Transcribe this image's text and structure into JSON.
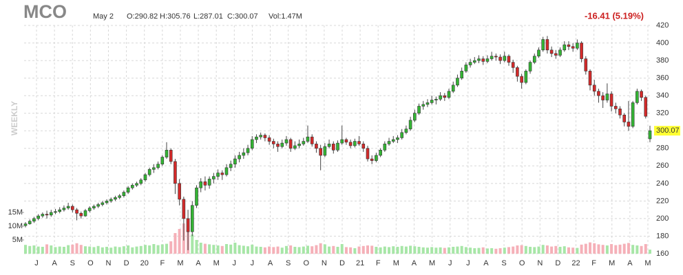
{
  "chart_data": {
    "type": "candlestick",
    "title": "MCO",
    "header": {
      "date": "May 2",
      "open": "O:290.82",
      "high": "H:305.76",
      "low": "L:287.01",
      "close": "C:300.07",
      "volume": "Vol:1.47M",
      "change": "-16.41 (5.19%)"
    },
    "period": "WEEKLY",
    "up_color": "#34b534",
    "down_color": "#d42a2a",
    "up_volume_color": "#a7e6a7",
    "down_volume_color": "#f5b0b8",
    "ylim": [
      160,
      420
    ],
    "yticks": [
      160,
      180,
      200,
      220,
      240,
      260,
      280,
      300,
      320,
      340,
      360,
      380,
      400,
      420
    ],
    "vlim": [
      0,
      16000000
    ],
    "vticks": [
      {
        "value": 5000000,
        "label": "5M"
      },
      {
        "value": 10000000,
        "label": "10M"
      },
      {
        "value": 15000000,
        "label": "15M"
      }
    ],
    "grid": true,
    "xlabels": [
      "J",
      "A",
      "S",
      "O",
      "N",
      "D",
      "20",
      "F",
      "M",
      "A",
      "M",
      "J",
      "J",
      "A",
      "S",
      "O",
      "N",
      "D",
      "21",
      "F",
      "M",
      "A",
      "M",
      "J",
      "J",
      "A",
      "S",
      "O",
      "N",
      "D",
      "22",
      "F",
      "M",
      "A",
      "M"
    ],
    "candles": [
      [
        192,
        196,
        190,
        194,
        3200000.0
      ],
      [
        194,
        199,
        193,
        197,
        2800000.0
      ],
      [
        197,
        202,
        195,
        200,
        3000000.0
      ],
      [
        200,
        205,
        198,
        203,
        2600000.0
      ],
      [
        203,
        207,
        201,
        205,
        2500000.0
      ],
      [
        205,
        209,
        200,
        204,
        3400000.0
      ],
      [
        204,
        210,
        202,
        207,
        3000000.0
      ],
      [
        207,
        211,
        205,
        208,
        2400000.0
      ],
      [
        208,
        213,
        206,
        210,
        2600000.0
      ],
      [
        210,
        215,
        208,
        212,
        2500000.0
      ],
      [
        212,
        218,
        210,
        214,
        3100000.0
      ],
      [
        214,
        216,
        207,
        210,
        3300000.0
      ],
      [
        210,
        212,
        198,
        206,
        3800000.0
      ],
      [
        206,
        208,
        200,
        203,
        3200000.0
      ],
      [
        203,
        211,
        202,
        209,
        2700000.0
      ],
      [
        209,
        214,
        207,
        212,
        2600000.0
      ],
      [
        212,
        216,
        210,
        214,
        2400000.0
      ],
      [
        214,
        218,
        212,
        216,
        2800000.0
      ],
      [
        216,
        220,
        214,
        218,
        2300000.0
      ],
      [
        218,
        222,
        216,
        220,
        2500000.0
      ],
      [
        220,
        224,
        218,
        222,
        2200000.0
      ],
      [
        222,
        226,
        220,
        224,
        2600000.0
      ],
      [
        224,
        228,
        222,
        226,
        2400000.0
      ],
      [
        226,
        232,
        224,
        230,
        2700000.0
      ],
      [
        230,
        237,
        228,
        235,
        3000000.0
      ],
      [
        235,
        240,
        233,
        238,
        2300000.0
      ],
      [
        238,
        242,
        236,
        240,
        2600000.0
      ],
      [
        240,
        246,
        238,
        244,
        2800000.0
      ],
      [
        244,
        252,
        242,
        250,
        3200000.0
      ],
      [
        250,
        258,
        248,
        256,
        3000000.0
      ],
      [
        256,
        262,
        252,
        258,
        3500000.0
      ],
      [
        258,
        265,
        256,
        262,
        3100000.0
      ],
      [
        262,
        272,
        260,
        270,
        3400000.0
      ],
      [
        270,
        287,
        268,
        278,
        3600000.0
      ],
      [
        278,
        280,
        262,
        265,
        4500000.0
      ],
      [
        265,
        268,
        228,
        240,
        7500000.0
      ],
      [
        240,
        245,
        215,
        222,
        9000000.0
      ],
      [
        222,
        225,
        175,
        200,
        11000000.0
      ],
      [
        200,
        210,
        164,
        185,
        10500000.0
      ],
      [
        185,
        220,
        180,
        215,
        7000000.0
      ],
      [
        215,
        238,
        212,
        235,
        5000000.0
      ],
      [
        235,
        246,
        230,
        242,
        4000000.0
      ],
      [
        242,
        248,
        232,
        238,
        3600000.0
      ],
      [
        238,
        248,
        234,
        245,
        3400000.0
      ],
      [
        245,
        252,
        240,
        248,
        3200000.0
      ],
      [
        248,
        256,
        244,
        252,
        3000000.0
      ],
      [
        252,
        255,
        244,
        250,
        2800000.0
      ],
      [
        250,
        262,
        248,
        258,
        3500000.0
      ],
      [
        258,
        266,
        254,
        262,
        3300000.0
      ],
      [
        262,
        272,
        258,
        268,
        4000000.0
      ],
      [
        268,
        276,
        264,
        272,
        3100000.0
      ],
      [
        272,
        280,
        268,
        275,
        2900000.0
      ],
      [
        275,
        284,
        272,
        280,
        2700000.0
      ],
      [
        280,
        294,
        278,
        290,
        3300000.0
      ],
      [
        290,
        296,
        286,
        293,
        2600000.0
      ],
      [
        293,
        298,
        290,
        295,
        2500000.0
      ],
      [
        295,
        297,
        288,
        292,
        2300000.0
      ],
      [
        292,
        295,
        284,
        288,
        2600000.0
      ],
      [
        288,
        291,
        280,
        285,
        2400000.0
      ],
      [
        285,
        288,
        276,
        282,
        2600000.0
      ],
      [
        282,
        290,
        280,
        286,
        2200000.0
      ],
      [
        286,
        294,
        283,
        290,
        2800000.0
      ],
      [
        290,
        292,
        276,
        280,
        3000000.0
      ],
      [
        280,
        288,
        278,
        283,
        2500000.0
      ],
      [
        283,
        290,
        280,
        285,
        2400000.0
      ],
      [
        285,
        292,
        283,
        288,
        2600000.0
      ],
      [
        288,
        306,
        286,
        293,
        2900000.0
      ],
      [
        293,
        296,
        282,
        285,
        2700000.0
      ],
      [
        285,
        288,
        275,
        280,
        3100000.0
      ],
      [
        280,
        284,
        255,
        272,
        3800000.0
      ],
      [
        272,
        286,
        270,
        282,
        3400000.0
      ],
      [
        282,
        290,
        280,
        285,
        2600000.0
      ],
      [
        285,
        288,
        274,
        278,
        2800000.0
      ],
      [
        278,
        289,
        276,
        286,
        2500000.0
      ],
      [
        286,
        306,
        284,
        290,
        3500000.0
      ],
      [
        290,
        292,
        284,
        287,
        2400000.0
      ],
      [
        287,
        290,
        280,
        283,
        2300000.0
      ],
      [
        283,
        291,
        281,
        288,
        2000000.0
      ],
      [
        288,
        294,
        283,
        285,
        2600000.0
      ],
      [
        285,
        288,
        276,
        280,
        2800000.0
      ],
      [
        280,
        283,
        265,
        268,
        3000000.0
      ],
      [
        268,
        272,
        262,
        266,
        2900000.0
      ],
      [
        266,
        275,
        264,
        272,
        2500000.0
      ],
      [
        272,
        280,
        270,
        278,
        2300000.0
      ],
      [
        278,
        288,
        276,
        285,
        2600000.0
      ],
      [
        285,
        292,
        283,
        288,
        2400000.0
      ],
      [
        288,
        294,
        286,
        290,
        2700000.0
      ],
      [
        290,
        295,
        286,
        292,
        2500000.0
      ],
      [
        292,
        302,
        290,
        298,
        2800000.0
      ],
      [
        298,
        306,
        296,
        302,
        2600000.0
      ],
      [
        302,
        316,
        300,
        312,
        2900000.0
      ],
      [
        312,
        324,
        310,
        320,
        2700000.0
      ],
      [
        320,
        331,
        318,
        328,
        2500000.0
      ],
      [
        328,
        334,
        324,
        330,
        2300000.0
      ],
      [
        330,
        336,
        327,
        332,
        2200000.0
      ],
      [
        332,
        340,
        330,
        335,
        2400000.0
      ],
      [
        335,
        339,
        330,
        336,
        2200000.0
      ],
      [
        336,
        344,
        334,
        340,
        2300000.0
      ],
      [
        340,
        343,
        334,
        338,
        2100000.0
      ],
      [
        338,
        348,
        336,
        345,
        2300000.0
      ],
      [
        345,
        356,
        343,
        352,
        2500000.0
      ],
      [
        352,
        364,
        350,
        360,
        2600000.0
      ],
      [
        360,
        372,
        358,
        368,
        2800000.0
      ],
      [
        368,
        378,
        366,
        375,
        2400000.0
      ],
      [
        375,
        382,
        372,
        378,
        2200000.0
      ],
      [
        378,
        384,
        376,
        380,
        2000000.0
      ],
      [
        380,
        386,
        377,
        382,
        2100000.0
      ],
      [
        382,
        385,
        375,
        379,
        2300000.0
      ],
      [
        379,
        386,
        377,
        382,
        1900000.0
      ],
      [
        382,
        390,
        380,
        385,
        2000000.0
      ],
      [
        385,
        388,
        380,
        384,
        1800000.0
      ],
      [
        384,
        387,
        376,
        380,
        2000000.0
      ],
      [
        380,
        390,
        378,
        385,
        2200000.0
      ],
      [
        385,
        387,
        374,
        378,
        2400000.0
      ],
      [
        378,
        381,
        366,
        372,
        2600000.0
      ],
      [
        372,
        374,
        356,
        362,
        3000000.0
      ],
      [
        362,
        365,
        348,
        355,
        3100000.0
      ],
      [
        355,
        370,
        353,
        368,
        2800000.0
      ],
      [
        368,
        380,
        365,
        378,
        2500000.0
      ],
      [
        378,
        388,
        376,
        385,
        2400000.0
      ],
      [
        385,
        395,
        383,
        392,
        2600000.0
      ],
      [
        392,
        407,
        390,
        404,
        3200000.0
      ],
      [
        404,
        408,
        388,
        392,
        3000000.0
      ],
      [
        392,
        396,
        384,
        388,
        2600000.0
      ],
      [
        388,
        392,
        382,
        386,
        2800000.0
      ],
      [
        386,
        395,
        384,
        392,
        2500000.0
      ],
      [
        392,
        402,
        390,
        398,
        2700000.0
      ],
      [
        398,
        402,
        392,
        396,
        2300000.0
      ],
      [
        396,
        400,
        390,
        394,
        2200000.0
      ],
      [
        394,
        404,
        392,
        400,
        2100000.0
      ],
      [
        400,
        402,
        378,
        382,
        3300000.0
      ],
      [
        382,
        385,
        364,
        368,
        3600000.0
      ],
      [
        368,
        370,
        346,
        352,
        4100000.0
      ],
      [
        352,
        358,
        340,
        345,
        3800000.0
      ],
      [
        345,
        348,
        332,
        340,
        3400000.0
      ],
      [
        340,
        344,
        326,
        335,
        3200000.0
      ],
      [
        335,
        354,
        332,
        342,
        3000000.0
      ],
      [
        342,
        345,
        322,
        328,
        3500000.0
      ],
      [
        328,
        332,
        320,
        325,
        3100000.0
      ],
      [
        325,
        328,
        314,
        318,
        3300000.0
      ],
      [
        318,
        320,
        305,
        310,
        3600000.0
      ],
      [
        310,
        334,
        300,
        305,
        3900000.0
      ],
      [
        305,
        334,
        303,
        332,
        3200000.0
      ],
      [
        332,
        348,
        330,
        345,
        3000000.0
      ],
      [
        345,
        347,
        334,
        338,
        2800000.0
      ],
      [
        338,
        340,
        314,
        316.48,
        3500000.0
      ],
      [
        290.82,
        305.76,
        287.01,
        300.07,
        1470000.0
      ]
    ]
  }
}
